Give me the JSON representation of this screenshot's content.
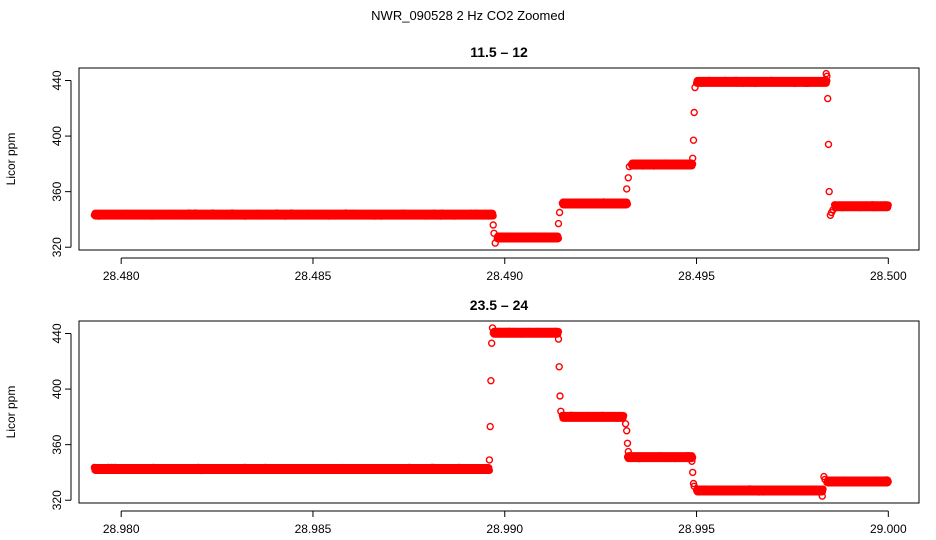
{
  "figure_title": "NWR_090528  2 Hz CO2 Zoomed",
  "colors": {
    "points": "#ff0000",
    "axes": "#000000",
    "background": "#ffffff"
  },
  "chart_data": [
    {
      "type": "scatter",
      "title": "11.5 – 12",
      "xlabel": "",
      "ylabel": "Licor ppm",
      "xlim": [
        28.4789,
        28.5008
      ],
      "ylim": [
        318,
        449
      ],
      "x_ticks": [
        "28.480",
        "28.485",
        "28.490",
        "28.495",
        "28.500"
      ],
      "x_tick_values": [
        28.48,
        28.485,
        28.49,
        28.495,
        28.5
      ],
      "y_ticks": [
        "320",
        "360",
        "400",
        "440"
      ],
      "y_tick_values": [
        320,
        360,
        400,
        440
      ],
      "marker": "open-circle",
      "grid": false,
      "legend": "none",
      "plateaus": [
        {
          "x_start": 28.4793,
          "x_end": 28.4897,
          "y": 343.5
        },
        {
          "x_start": 28.4898,
          "x_end": 28.4914,
          "y": 327
        },
        {
          "x_start": 28.4915,
          "x_end": 28.4932,
          "y": 351.5
        },
        {
          "x_start": 28.4933,
          "x_end": 28.4949,
          "y": 379.5
        },
        {
          "x_start": 28.495,
          "x_end": 28.4984,
          "y": 439
        },
        {
          "x_start": 28.4986,
          "x_end": 28.5,
          "y": 349.5
        }
      ],
      "transition_points": [
        {
          "x": 28.4897,
          "y": 336
        },
        {
          "x": 28.48972,
          "y": 330
        },
        {
          "x": 28.48975,
          "y": 323
        },
        {
          "x": 28.4914,
          "y": 337
        },
        {
          "x": 28.49143,
          "y": 345
        },
        {
          "x": 28.49318,
          "y": 362
        },
        {
          "x": 28.49322,
          "y": 370
        },
        {
          "x": 28.49325,
          "y": 378
        },
        {
          "x": 28.4949,
          "y": 384
        },
        {
          "x": 28.49492,
          "y": 397
        },
        {
          "x": 28.49494,
          "y": 417
        },
        {
          "x": 28.49496,
          "y": 435
        },
        {
          "x": 28.49838,
          "y": 445
        },
        {
          "x": 28.4984,
          "y": 443
        },
        {
          "x": 28.49842,
          "y": 427
        },
        {
          "x": 28.49844,
          "y": 394
        },
        {
          "x": 28.49846,
          "y": 360
        },
        {
          "x": 28.49849,
          "y": 343
        },
        {
          "x": 28.49852,
          "y": 345
        },
        {
          "x": 28.49856,
          "y": 347
        }
      ]
    },
    {
      "type": "scatter",
      "title": "23.5 – 24",
      "xlabel": "",
      "ylabel": "Licor ppm",
      "xlim": [
        28.9789,
        29.0008
      ],
      "ylim": [
        318,
        449
      ],
      "x_ticks": [
        "28.980",
        "28.985",
        "28.990",
        "28.995",
        "29.000"
      ],
      "x_tick_values": [
        28.98,
        28.985,
        28.99,
        28.995,
        29.0
      ],
      "y_ticks": [
        "320",
        "360",
        "400",
        "440"
      ],
      "y_tick_values": [
        320,
        360,
        400,
        440
      ],
      "marker": "open-circle",
      "grid": false,
      "legend": "none",
      "plateaus": [
        {
          "x_start": 28.9793,
          "x_end": 28.9896,
          "y": 342.5
        },
        {
          "x_start": 28.9897,
          "x_end": 28.9914,
          "y": 440.5
        },
        {
          "x_start": 28.9915,
          "x_end": 28.9931,
          "y": 380
        },
        {
          "x_start": 28.9932,
          "x_end": 28.9949,
          "y": 351
        },
        {
          "x_start": 28.995,
          "x_end": 28.9983,
          "y": 327
        },
        {
          "x_start": 28.9984,
          "x_end": 29.0,
          "y": 333.5
        }
      ],
      "transition_points": [
        {
          "x": 28.9896,
          "y": 349
        },
        {
          "x": 28.98962,
          "y": 373
        },
        {
          "x": 28.98964,
          "y": 406
        },
        {
          "x": 28.98966,
          "y": 433
        },
        {
          "x": 28.98968,
          "y": 444
        },
        {
          "x": 28.9914,
          "y": 436
        },
        {
          "x": 28.99142,
          "y": 416
        },
        {
          "x": 28.99144,
          "y": 395
        },
        {
          "x": 28.99146,
          "y": 384
        },
        {
          "x": 28.99315,
          "y": 375
        },
        {
          "x": 28.99318,
          "y": 370
        },
        {
          "x": 28.9932,
          "y": 361
        },
        {
          "x": 28.99322,
          "y": 355
        },
        {
          "x": 28.99488,
          "y": 348
        },
        {
          "x": 28.9949,
          "y": 340
        },
        {
          "x": 28.99492,
          "y": 332
        },
        {
          "x": 28.99494,
          "y": 330
        },
        {
          "x": 28.99828,
          "y": 323
        },
        {
          "x": 28.99832,
          "y": 337
        },
        {
          "x": 28.99835,
          "y": 335
        }
      ]
    }
  ]
}
